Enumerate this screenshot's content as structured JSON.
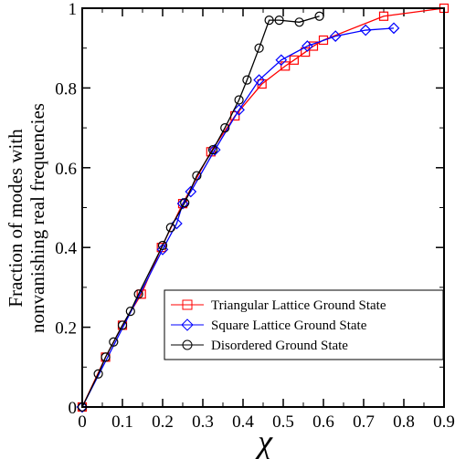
{
  "chart_data": {
    "type": "line",
    "title": "",
    "xlabel": "χ",
    "ylabel_lines": [
      "Fraction of modes with",
      "nonvanishing real frequencies"
    ],
    "xlim": [
      0,
      0.9
    ],
    "ylim": [
      0,
      1
    ],
    "xticks": [
      "0",
      "0.1",
      "0.2",
      "0.3",
      "0.4",
      "0.5",
      "0.6",
      "0.7",
      "0.8",
      "0.9"
    ],
    "yticks": [
      "0",
      "0.2",
      "0.4",
      "0.6",
      "0.8",
      "1"
    ],
    "grid": false,
    "legend_position": "bottom-right",
    "series": [
      {
        "name": "Triangular Lattice Ground State",
        "color": "#ff0000",
        "marker": "square",
        "x": [
          0,
          0.058,
          0.1,
          0.147,
          0.197,
          0.25,
          0.32,
          0.38,
          0.447,
          0.505,
          0.527,
          0.555,
          0.575,
          0.6,
          0.75,
          0.9
        ],
        "y": [
          0,
          0.125,
          0.205,
          0.283,
          0.4,
          0.51,
          0.64,
          0.73,
          0.81,
          0.855,
          0.87,
          0.89,
          0.905,
          0.92,
          0.98,
          1.0
        ]
      },
      {
        "name": "Square Lattice Ground State",
        "color": "#0000ff",
        "marker": "diamond",
        "x": [
          0,
          0.2,
          0.235,
          0.25,
          0.27,
          0.33,
          0.39,
          0.44,
          0.495,
          0.56,
          0.63,
          0.705,
          0.775
        ],
        "y": [
          0,
          0.395,
          0.46,
          0.51,
          0.54,
          0.645,
          0.745,
          0.82,
          0.87,
          0.905,
          0.93,
          0.945,
          0.95
        ]
      },
      {
        "name": "Disordered Ground State",
        "color": "#000000",
        "marker": "circle",
        "x": [
          0,
          0.04,
          0.058,
          0.078,
          0.1,
          0.12,
          0.14,
          0.2,
          0.22,
          0.255,
          0.285,
          0.325,
          0.355,
          0.39,
          0.41,
          0.44,
          0.465,
          0.49,
          0.54,
          0.59
        ],
        "y": [
          0,
          0.083,
          0.125,
          0.163,
          0.205,
          0.24,
          0.283,
          0.405,
          0.45,
          0.512,
          0.58,
          0.645,
          0.7,
          0.77,
          0.82,
          0.9,
          0.97,
          0.97,
          0.965,
          0.98
        ]
      }
    ]
  }
}
